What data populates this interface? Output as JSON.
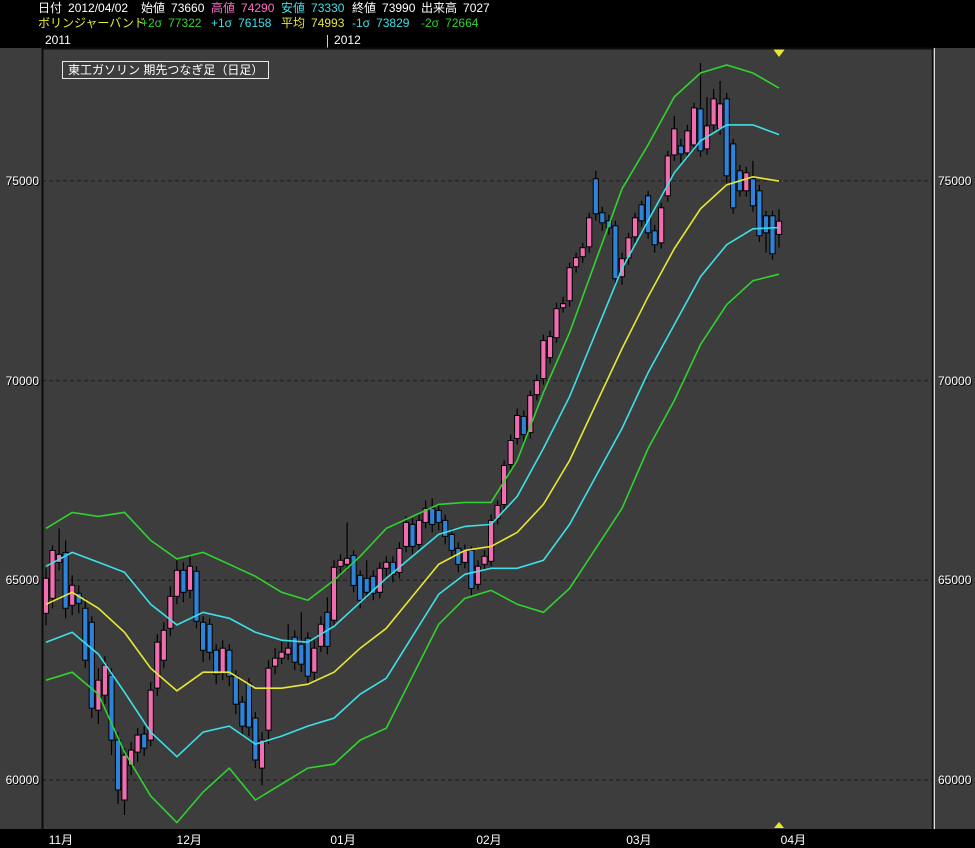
{
  "colors": {
    "white": "#ffffff",
    "magenta": "#ff6ec7",
    "cyan": "#3ce0e8",
    "yellow": "#e8e833",
    "green": "#2fd32f",
    "up": "#f06eb0",
    "down": "#2e82d8",
    "bg": "#3d3d3d",
    "panel": "#000000",
    "grid": "#242424",
    "frame_dark": "#0c0c0c",
    "frame_light": "#dcdcdc",
    "marker": "#e8e833"
  },
  "header": {
    "row1": [
      {
        "label": "日付",
        "value": "2012/04/02",
        "color": "white"
      },
      {
        "label": "始値",
        "value": "73660",
        "color": "white"
      },
      {
        "label": "高値",
        "value": "74290",
        "color": "magenta"
      },
      {
        "label": "安値",
        "value": "73330",
        "color": "cyan"
      },
      {
        "label": "終値",
        "value": "73990",
        "color": "white"
      },
      {
        "label": "出来高",
        "value": "7027",
        "color": "white"
      }
    ],
    "row2": [
      {
        "label": "ボリンジャーバンド",
        "value": "",
        "color": "yellow"
      },
      {
        "label": "+2σ",
        "value": "77322",
        "color": "green"
      },
      {
        "label": "+1σ",
        "value": "76158",
        "color": "cyan"
      },
      {
        "label": "平均",
        "value": "74993",
        "color": "yellow"
      },
      {
        "label": "-1σ",
        "value": "73829",
        "color": "cyan"
      },
      {
        "label": "-2σ",
        "value": "72664",
        "color": "green"
      }
    ]
  },
  "years": [
    "2011",
    "2012"
  ],
  "chart_data": {
    "type": "candlestick",
    "title": "東工ガソリン 期先つなぎ足（日足）",
    "legend_position": "header",
    "grid": "horizontal-dashed",
    "y_ticks": [
      75000,
      70000,
      65000,
      60000
    ],
    "ylim": [
      58775,
      78325
    ],
    "x_months": [
      {
        "label": "11月",
        "index": 0.3
      },
      {
        "label": "12月",
        "index": 19.9
      },
      {
        "label": "01月",
        "index": 43.4
      },
      {
        "label": "02月",
        "index": 65.7
      },
      {
        "label": "03月",
        "index": 88.6
      },
      {
        "label": "04月",
        "index": 112.2
      }
    ],
    "latest_marker_index": 112,
    "series_colors": {
      "plus2": "green",
      "plus1": "cyan",
      "mean": "yellow",
      "minus1": "cyan",
      "minus2": "green",
      "up_candle": "up",
      "down_candle": "down"
    },
    "candles": [
      [
        64175,
        65300,
        63875,
        65050
      ],
      [
        64550,
        65875,
        64300,
        65750
      ],
      [
        65450,
        66300,
        65250,
        65650
      ],
      [
        65700,
        66000,
        64050,
        64300
      ],
      [
        64375,
        65125,
        64125,
        64875
      ],
      [
        64675,
        64875,
        64175,
        64425
      ],
      [
        64300,
        64550,
        62800,
        63000
      ],
      [
        63950,
        64100,
        61550,
        61800
      ],
      [
        61750,
        62800,
        61400,
        62500
      ],
      [
        62125,
        63100,
        61900,
        62875
      ],
      [
        62625,
        62800,
        60625,
        61000
      ],
      [
        61000,
        61200,
        59400,
        59750
      ],
      [
        59500,
        60800,
        59125,
        60625
      ],
      [
        60375,
        60950,
        60125,
        60750
      ],
      [
        60700,
        61300,
        60450,
        61125
      ],
      [
        61150,
        61350,
        60600,
        60800
      ],
      [
        61000,
        62450,
        60850,
        62250
      ],
      [
        62300,
        63650,
        62100,
        63450
      ],
      [
        63000,
        63950,
        62800,
        63750
      ],
      [
        63800,
        64850,
        63600,
        64600
      ],
      [
        64600,
        65500,
        64400,
        65250
      ],
      [
        65250,
        65450,
        64450,
        64700
      ],
      [
        64750,
        65650,
        64550,
        65350
      ],
      [
        65225,
        65350,
        63800,
        63975
      ],
      [
        63950,
        64100,
        62950,
        63250
      ],
      [
        63900,
        64050,
        63000,
        63200
      ],
      [
        63250,
        63400,
        62400,
        62650
      ],
      [
        62700,
        63500,
        62500,
        63300
      ],
      [
        63250,
        63400,
        62350,
        62600
      ],
      [
        62600,
        62750,
        61650,
        61900
      ],
      [
        61950,
        62100,
        61100,
        61350
      ],
      [
        62425,
        62550,
        61100,
        61325
      ],
      [
        61550,
        61700,
        60300,
        60500
      ],
      [
        60300,
        61200,
        59875,
        61000
      ],
      [
        61250,
        63000,
        60900,
        62800
      ],
      [
        62850,
        63300,
        62650,
        63050
      ],
      [
        63050,
        63500,
        62900,
        63200
      ],
      [
        63150,
        63900,
        63000,
        63300
      ],
      [
        63575,
        63750,
        62750,
        62950
      ],
      [
        63400,
        64200,
        62700,
        62900
      ],
      [
        63550,
        63700,
        62400,
        62600
      ],
      [
        62700,
        63500,
        62500,
        63300
      ],
      [
        63350,
        64100,
        63200,
        63900
      ],
      [
        64200,
        64575,
        63150,
        63350
      ],
      [
        64000,
        65500,
        63850,
        65325
      ],
      [
        65350,
        65650,
        65100,
        65500
      ],
      [
        65400,
        66450,
        65250,
        65550
      ],
      [
        65625,
        65750,
        64700,
        64875
      ],
      [
        65125,
        65250,
        64300,
        64500
      ],
      [
        65050,
        65500,
        64550,
        64700
      ],
      [
        65100,
        65250,
        64500,
        64675
      ],
      [
        64700,
        65450,
        64550,
        65300
      ],
      [
        65300,
        65600,
        65100,
        65450
      ],
      [
        65450,
        65600,
        64950,
        65150
      ],
      [
        65200,
        65950,
        65050,
        65800
      ],
      [
        65850,
        66600,
        65700,
        66450
      ],
      [
        66400,
        66550,
        65650,
        65850
      ],
      [
        65900,
        66700,
        65750,
        66500
      ],
      [
        66450,
        67000,
        66300,
        66800
      ],
      [
        66800,
        67050,
        66200,
        66400
      ],
      [
        66750,
        66900,
        66250,
        66450
      ],
      [
        66500,
        66650,
        65900,
        66100
      ],
      [
        66150,
        66300,
        65550,
        65750
      ],
      [
        65800,
        65950,
        65200,
        65400
      ],
      [
        65450,
        65900,
        65300,
        65750
      ],
      [
        65750,
        65850,
        64600,
        64800
      ],
      [
        64900,
        65500,
        64750,
        65350
      ],
      [
        65400,
        65750,
        65250,
        65600
      ],
      [
        65475,
        66650,
        65350,
        66500
      ],
      [
        66550,
        67000,
        66400,
        66875
      ],
      [
        66900,
        68000,
        66750,
        67875
      ],
      [
        67900,
        68650,
        67750,
        68500
      ],
      [
        68550,
        69300,
        68400,
        69125
      ],
      [
        69100,
        69250,
        68450,
        68650
      ],
      [
        68700,
        69750,
        68550,
        69625
      ],
      [
        69650,
        70150,
        69500,
        70000
      ],
      [
        70050,
        71150,
        69900,
        71000
      ],
      [
        70575,
        71250,
        70425,
        71100
      ],
      [
        71075,
        71950,
        70950,
        71800
      ],
      [
        71825,
        72100,
        71700,
        71925
      ],
      [
        72000,
        72950,
        71850,
        72825
      ],
      [
        72850,
        73200,
        72700,
        73075
      ],
      [
        73100,
        73450,
        72950,
        73325
      ],
      [
        73350,
        74200,
        73200,
        74075
      ],
      [
        75050,
        75250,
        74000,
        74175
      ],
      [
        74200,
        74350,
        73750,
        73950
      ],
      [
        74000,
        74150,
        73650,
        73825
      ],
      [
        73875,
        74000,
        72350,
        72550
      ],
      [
        72600,
        73200,
        72400,
        73050
      ],
      [
        73075,
        73700,
        72900,
        73575
      ],
      [
        73600,
        74200,
        73450,
        74075
      ],
      [
        74400,
        74500,
        73850,
        74000
      ],
      [
        74625,
        74750,
        73550,
        73700
      ],
      [
        73750,
        73900,
        73200,
        73400
      ],
      [
        73450,
        74450,
        73300,
        74325
      ],
      [
        74625,
        75750,
        74475,
        75625
      ],
      [
        75650,
        76625,
        75500,
        76300
      ],
      [
        75875,
        76050,
        75450,
        75675
      ],
      [
        75700,
        76400,
        75550,
        76250
      ],
      [
        75900,
        76950,
        75750,
        76825
      ],
      [
        76800,
        77950,
        75600,
        75750
      ],
      [
        75800,
        77100,
        75650,
        76375
      ],
      [
        76400,
        77300,
        76250,
        77050
      ],
      [
        76300,
        77500,
        76150,
        76925
      ],
      [
        77050,
        77200,
        74950,
        75125
      ],
      [
        75925,
        76050,
        74175,
        74325
      ],
      [
        75250,
        75400,
        74600,
        74750
      ],
      [
        74750,
        75350,
        74600,
        75200
      ],
      [
        75050,
        75500,
        74225,
        74375
      ],
      [
        74750,
        74900,
        73475,
        73625
      ],
      [
        74125,
        74250,
        73200,
        73700
      ],
      [
        74125,
        74250,
        73025,
        73175
      ],
      [
        73660,
        74290,
        73330,
        73990
      ]
    ],
    "bands": {
      "start_index": 0,
      "index_step": 4,
      "plus2": [
        66300,
        66700,
        66600,
        66700,
        66000,
        65535,
        65700,
        65400,
        65100,
        64700,
        64500,
        65000,
        65600,
        66300,
        66600,
        66900,
        66950,
        66950,
        68000,
        69700,
        71200,
        73000,
        74800,
        75900,
        77100,
        77700,
        77900,
        77700,
        77322
      ],
      "plus1": [
        65350,
        65700,
        65450,
        65200,
        64400,
        63885,
        64200,
        64050,
        63700,
        63500,
        63450,
        63850,
        64450,
        65050,
        65600,
        66150,
        66350,
        66400,
        67100,
        68300,
        69600,
        71200,
        72800,
        74000,
        75200,
        76000,
        76400,
        76400,
        76158
      ],
      "mean": [
        64400,
        64700,
        64300,
        63700,
        62800,
        62235,
        62700,
        62700,
        62300,
        62300,
        62400,
        62700,
        63300,
        63800,
        64600,
        65400,
        65750,
        65850,
        66200,
        66900,
        68000,
        69400,
        70800,
        72100,
        73300,
        74300,
        74900,
        75100,
        74993
      ],
      "minus1": [
        63450,
        63700,
        63150,
        62200,
        61200,
        60585,
        61200,
        61350,
        60900,
        61100,
        61350,
        61550,
        62150,
        62550,
        63600,
        64650,
        65150,
        65300,
        65300,
        65500,
        66400,
        67600,
        68800,
        70200,
        71400,
        72600,
        73400,
        73800,
        73829
      ],
      "minus2": [
        62500,
        62700,
        62150,
        60700,
        59600,
        58935,
        59700,
        60300,
        59500,
        59900,
        60300,
        60400,
        61000,
        61300,
        62600,
        63900,
        64550,
        64750,
        64400,
        64200,
        64800,
        65800,
        66800,
        68300,
        69500,
        70900,
        71900,
        72500,
        72664
      ]
    }
  }
}
